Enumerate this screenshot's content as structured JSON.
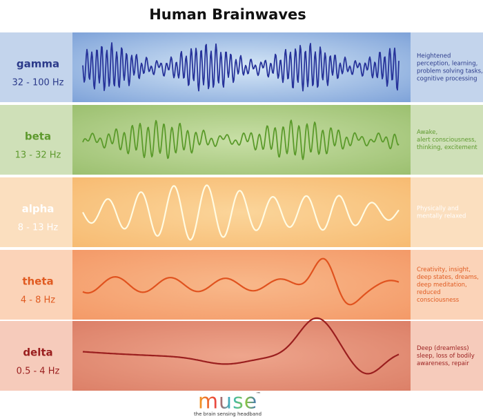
{
  "header": {
    "title": "Human Brainwaves"
  },
  "bands": [
    {
      "name": "gamma",
      "range": "32 - 100 Hz",
      "description": [
        "Heightened",
        "perception, learning,",
        "problem solving tasks,",
        "cognitive processing"
      ]
    },
    {
      "name": "beta",
      "range": "13 - 32 Hz",
      "description": [
        "Awake,",
        "alert consciousness,",
        "thinking, excitement"
      ]
    },
    {
      "name": "alpha",
      "range": "8 - 13 Hz",
      "description": [
        "Physically and",
        "mentally relaxed"
      ]
    },
    {
      "name": "theta",
      "range": "4 - 8 Hz",
      "description": [
        "Creativity, insight,",
        "deep states, dreams,",
        "deep meditation,",
        "reduced",
        "consciousness"
      ]
    },
    {
      "name": "delta",
      "range": "0.5 - 4 Hz",
      "description": [
        "Deep (dreamless)",
        "sleep, loss of bodily",
        "awareness, repair"
      ]
    }
  ],
  "logo": {
    "text": "muse",
    "mark": "™",
    "tagline": "the brain sensing headband"
  }
}
